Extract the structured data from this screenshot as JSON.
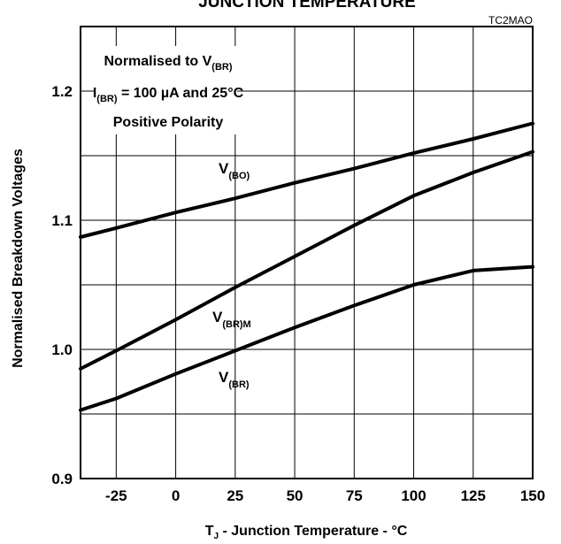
{
  "chart_data": {
    "type": "line",
    "title": "JUNCTION TEMPERATURE",
    "code": "TC2MAO",
    "xlabel": {
      "main": "T",
      "sub": "J",
      "rest": " - Junction Temperature - °C"
    },
    "ylabel": "Normalised Breakdown Voltages",
    "xlim": [
      -40,
      150
    ],
    "ylim": [
      0.9,
      1.25
    ],
    "xticks": [
      -25,
      0,
      25,
      50,
      75,
      100,
      125,
      150
    ],
    "xtick_labels": [
      "-25",
      "0",
      "25",
      "50",
      "75",
      "100",
      "125",
      "150"
    ],
    "yticks": [
      0.9,
      1.0,
      1.1,
      1.2
    ],
    "ytick_labels": [
      "0.9",
      "1.0",
      "1.1",
      "1.2"
    ],
    "grid": true,
    "annotation": {
      "line1": {
        "main": "Normalised to V",
        "sub": "(BR)"
      },
      "line2": {
        "main1": "I",
        "sub": "(BR)",
        "main2": " = 100 µA and 25°C"
      },
      "line3": "Positive Polarity"
    },
    "series": [
      {
        "label_main": "V",
        "label_sub": "(BO)",
        "x": [
          -40,
          -25,
          0,
          25,
          50,
          75,
          100,
          125,
          150
        ],
        "y": [
          1.087,
          1.094,
          1.106,
          1.117,
          1.129,
          1.14,
          1.152,
          1.163,
          1.175
        ]
      },
      {
        "label_main": "V",
        "label_sub": "(BR)M",
        "x": [
          -40,
          -25,
          0,
          25,
          50,
          75,
          100,
          125,
          150
        ],
        "y": [
          0.985,
          0.999,
          1.023,
          1.048,
          1.072,
          1.096,
          1.119,
          1.137,
          1.153
        ]
      },
      {
        "label_main": "V",
        "label_sub": "(BR)",
        "x": [
          -40,
          -25,
          0,
          25,
          50,
          75,
          100,
          125,
          150
        ],
        "y": [
          0.953,
          0.962,
          0.981,
          0.999,
          1.017,
          1.034,
          1.05,
          1.061,
          1.064
        ]
      }
    ]
  }
}
